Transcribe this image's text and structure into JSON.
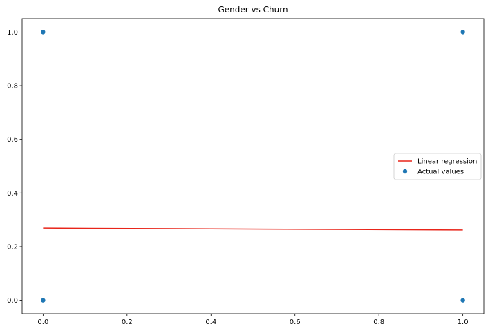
{
  "chart_data": {
    "type": "scatter",
    "title": "Gender vs Churn",
    "xlabel": "",
    "ylabel": "",
    "xlim": [
      -0.05,
      1.05
    ],
    "ylim": [
      -0.05,
      1.05
    ],
    "x_ticks": [
      0.0,
      0.2,
      0.4,
      0.6,
      0.8,
      1.0
    ],
    "x_tick_labels": [
      "0.0",
      "0.2",
      "0.4",
      "0.6",
      "0.8",
      "1.0"
    ],
    "y_ticks": [
      0.0,
      0.2,
      0.4,
      0.6,
      0.8,
      1.0
    ],
    "y_tick_labels": [
      "0.0",
      "0.2",
      "0.4",
      "0.6",
      "0.8",
      "1.0"
    ],
    "grid": false,
    "legend_position": "center-right",
    "series": [
      {
        "name": "Linear regression",
        "kind": "line",
        "color": "#e8251a",
        "points": [
          {
            "x": 0.0,
            "y": 0.269
          },
          {
            "x": 1.0,
            "y": 0.262
          }
        ]
      },
      {
        "name": "Actual values",
        "kind": "scatter",
        "color": "#1f77b4",
        "points": [
          {
            "x": 0.0,
            "y": 0.0
          },
          {
            "x": 0.0,
            "y": 1.0
          },
          {
            "x": 1.0,
            "y": 0.0
          },
          {
            "x": 1.0,
            "y": 1.0
          }
        ]
      }
    ]
  }
}
